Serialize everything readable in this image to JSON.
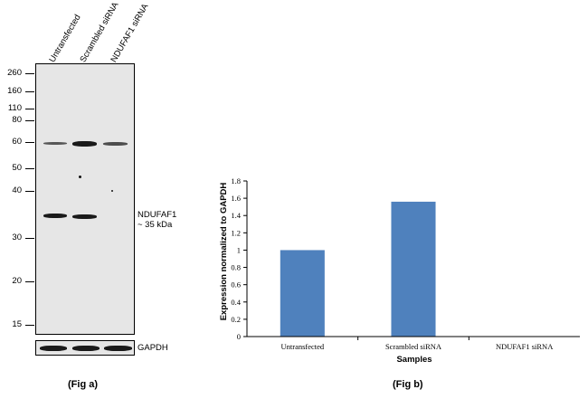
{
  "fig_a": {
    "lanes": [
      "Untransfected",
      "Scrambled siRNA",
      "NDUFAF1 siRNA"
    ],
    "mw_markers": [
      "260",
      "160",
      "110",
      "80",
      "60",
      "50",
      "40",
      "30",
      "20",
      "15"
    ],
    "target_label_line1": "NDUFAF1",
    "target_label_line2": "~ 35 kDa",
    "loading_control": "GAPDH",
    "caption": "(Fig a)"
  },
  "fig_b": {
    "caption": "(Fig b)"
  },
  "chart_data": {
    "type": "bar",
    "categories": [
      "Untransfected",
      "Scrambled siRNA",
      "NDUFAF1 siRNA"
    ],
    "values": [
      1.0,
      1.56,
      0.0
    ],
    "xlabel": "Samples",
    "ylabel": "Expression  normalized to GAPDH",
    "ylim": [
      0,
      1.8
    ],
    "yticks": [
      "0",
      "0.2",
      "0.4",
      "0.6",
      "0.8",
      "1",
      "1.2",
      "1.4",
      "1.6",
      "1.8"
    ],
    "bar_color": "#4F81BD",
    "grid": false,
    "legend": "none"
  }
}
